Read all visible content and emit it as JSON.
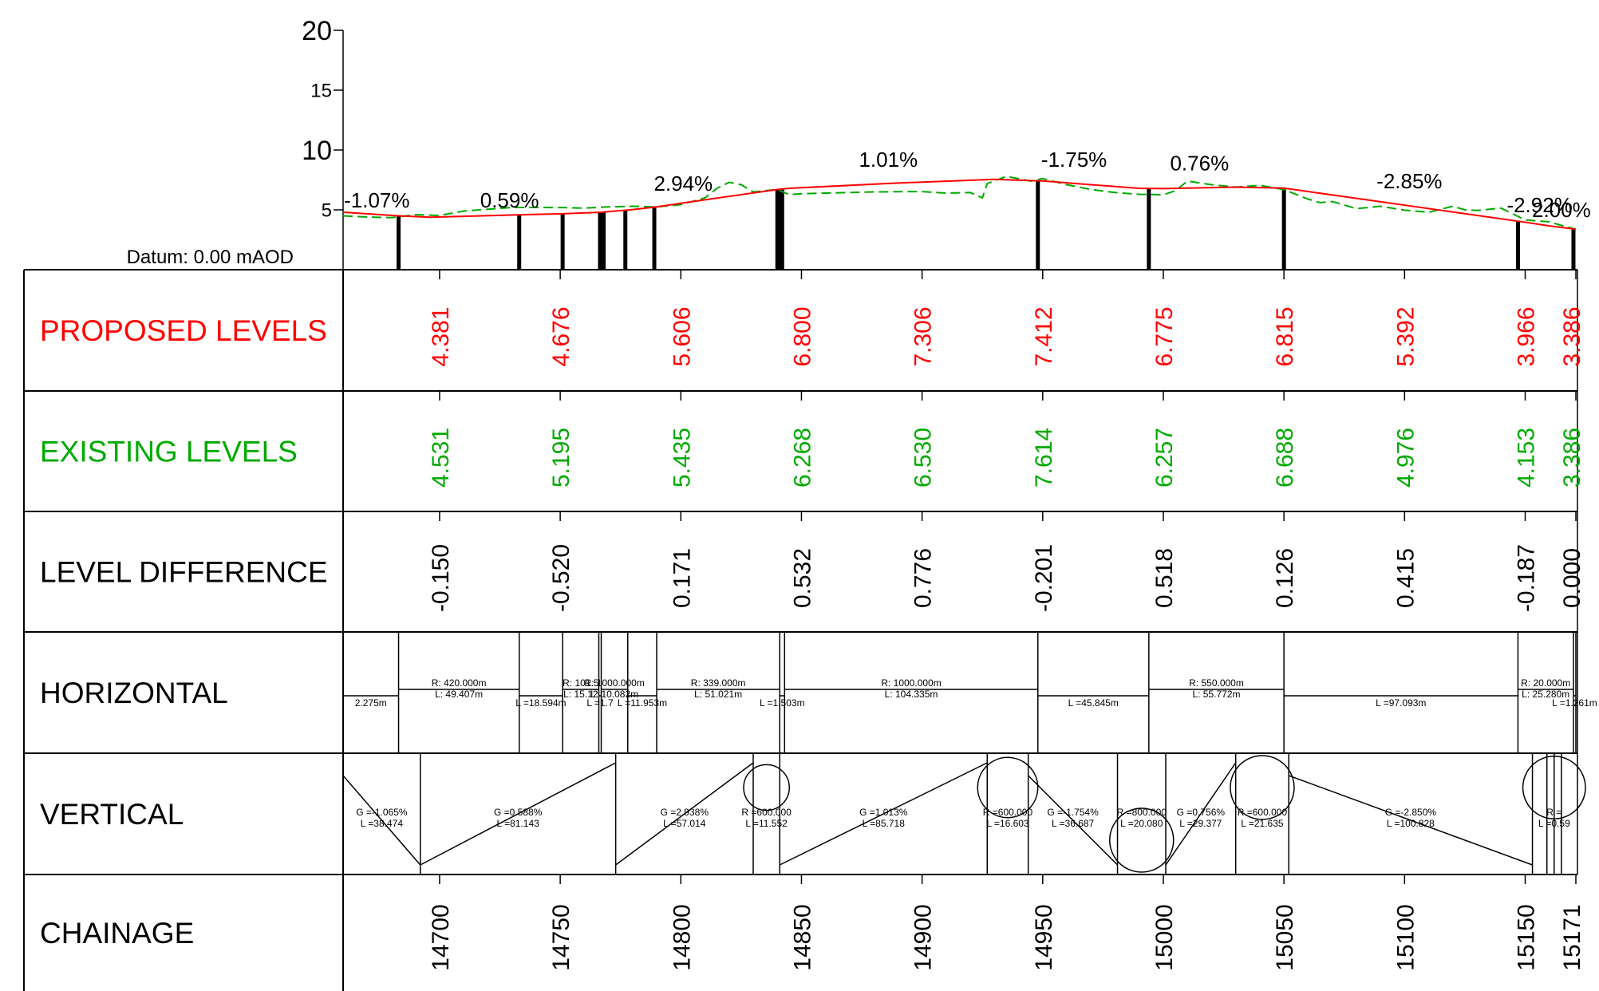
{
  "datum": "Datum: 0.00 mAOD",
  "colors": {
    "proposed": "#ff0000",
    "existing": "#00aa00",
    "ink": "#000000",
    "background": "#ffffff"
  },
  "rows": [
    {
      "key": "proposed",
      "label": "PROPOSED LEVELS",
      "color": "#ff0000"
    },
    {
      "key": "existing",
      "label": "EXISTING LEVELS",
      "color": "#00aa00"
    },
    {
      "key": "difference",
      "label": "LEVEL DIFFERENCE",
      "color": "#000000"
    },
    {
      "key": "horizontal",
      "label": "HORIZONTAL",
      "color": "#000000"
    },
    {
      "key": "vertical",
      "label": "VERTICAL",
      "color": "#000000"
    },
    {
      "key": "chainage",
      "label": "CHAINAGE",
      "color": "#000000"
    }
  ],
  "chart_data": {
    "type": "line",
    "x_label": "Chainage",
    "y_ticks": [
      5,
      10,
      15,
      20
    ],
    "ylim": [
      0,
      20
    ],
    "xlim": [
      14660,
      15171
    ],
    "series": [
      {
        "name": "Proposed",
        "color": "#ff0000",
        "x": [
          14660,
          14683,
          14696,
          14736,
          14751,
          14767,
          14779,
          14790,
          14802,
          14840,
          14845,
          14888,
          14930,
          14950,
          14970,
          14990,
          15000,
          15030,
          15050,
          15100,
          15150,
          15160,
          15171
        ],
        "y": [
          4.8,
          4.5,
          4.38,
          4.6,
          4.676,
          4.8,
          5.0,
          5.25,
          5.606,
          6.7,
          6.8,
          7.23,
          7.55,
          7.412,
          7.1,
          6.8,
          6.775,
          6.9,
          6.815,
          5.392,
          3.966,
          3.66,
          3.386
        ]
      },
      {
        "name": "Existing",
        "color": "#00aa00",
        "x": [
          14660,
          14670,
          14680,
          14690,
          14700,
          14710,
          14720,
          14730,
          14740,
          14750,
          14760,
          14770,
          14780,
          14790,
          14800,
          14810,
          14815,
          14820,
          14825,
          14830,
          14840,
          14845,
          14850,
          14860,
          14870,
          14880,
          14890,
          14900,
          14910,
          14920,
          14925,
          14927,
          14935,
          14945,
          14950,
          14960,
          14970,
          14980,
          14990,
          15000,
          15005,
          15010,
          15020,
          15030,
          15040,
          15050,
          15060,
          15065,
          15070,
          15080,
          15090,
          15100,
          15110,
          15120,
          15125,
          15130,
          15140,
          15150,
          15160,
          15165,
          15171
        ],
        "y": [
          4.5,
          4.4,
          4.35,
          4.6,
          4.531,
          4.9,
          5.05,
          5.2,
          5.2,
          5.195,
          5.15,
          5.25,
          5.3,
          5.25,
          5.435,
          6.0,
          6.8,
          7.3,
          7.1,
          6.5,
          6.7,
          6.268,
          6.35,
          6.4,
          6.45,
          6.5,
          6.52,
          6.53,
          6.4,
          6.45,
          6.0,
          7.2,
          7.8,
          7.4,
          7.614,
          7.1,
          6.7,
          6.45,
          6.3,
          6.257,
          6.6,
          7.4,
          7.1,
          6.9,
          7.05,
          6.688,
          5.9,
          5.6,
          5.7,
          5.1,
          5.3,
          4.976,
          4.8,
          5.3,
          5.0,
          4.95,
          5.15,
          4.153,
          4.0,
          3.7,
          3.386
        ]
      }
    ],
    "grade_labels": [
      {
        "x": 14674,
        "y": 5.2,
        "text": "-1.07%"
      },
      {
        "x": 14729,
        "y": 5.2,
        "text": "0.59%"
      },
      {
        "x": 14801,
        "y": 6.6,
        "text": "2.94%"
      },
      {
        "x": 14886,
        "y": 8.6,
        "text": "1.01%"
      },
      {
        "x": 14963,
        "y": 8.6,
        "text": "-1.75%"
      },
      {
        "x": 15015,
        "y": 8.3,
        "text": "0.76%"
      },
      {
        "x": 15102,
        "y": 6.8,
        "text": "-2.85%"
      },
      {
        "x": 15156,
        "y": 4.8,
        "text": "-2.92%"
      },
      {
        "x": 15165,
        "y": 4.4,
        "text": "2.00%"
      }
    ],
    "setting_out_chainages": [
      14683,
      14733,
      14751,
      14766.5,
      14768,
      14777,
      14789,
      14840,
      14841,
      14842,
      14948,
      14994,
      15050,
      15147,
      15170
    ]
  },
  "stations": [
    {
      "chainage": "14700",
      "proposed": "4.381",
      "existing": "4.531",
      "difference": "-0.150"
    },
    {
      "chainage": "14750",
      "proposed": "4.676",
      "existing": "5.195",
      "difference": "-0.520"
    },
    {
      "chainage": "14800",
      "proposed": "5.606",
      "existing": "5.435",
      "difference": "0.171"
    },
    {
      "chainage": "14850",
      "proposed": "6.800",
      "existing": "6.268",
      "difference": "0.532"
    },
    {
      "chainage": "14900",
      "proposed": "7.306",
      "existing": "6.530",
      "difference": "0.776"
    },
    {
      "chainage": "14950",
      "proposed": "7.412",
      "existing": "7.614",
      "difference": "-0.201"
    },
    {
      "chainage": "15000",
      "proposed": "6.775",
      "existing": "6.257",
      "difference": "0.518"
    },
    {
      "chainage": "15050",
      "proposed": "6.815",
      "existing": "6.688",
      "difference": "0.126"
    },
    {
      "chainage": "15100",
      "proposed": "5.392",
      "existing": "4.976",
      "difference": "0.415"
    },
    {
      "chainage": "15150",
      "proposed": "3.966",
      "existing": "4.153",
      "difference": "-0.187"
    },
    {
      "chainage": "15171",
      "proposed": "3.386",
      "existing": "3.386",
      "difference": "0.000"
    }
  ],
  "horizontal": [
    {
      "from": 14660,
      "to": 14683,
      "curved": false,
      "lines": [
        "2.275m"
      ]
    },
    {
      "from": 14683,
      "to": 14733,
      "curved": true,
      "lines": [
        "R: 420.000m",
        "L: 49.407m"
      ]
    },
    {
      "from": 14733,
      "to": 14751,
      "curved": false,
      "lines": [
        "L =18.594m"
      ]
    },
    {
      "from": 14751,
      "to": 14766,
      "curved": true,
      "lines": [
        "R: 101.5",
        "L: 15.12"
      ]
    },
    {
      "from": 14766,
      "to": 14767,
      "curved": false,
      "lines": [
        "L =1.7"
      ]
    },
    {
      "from": 14767,
      "to": 14778,
      "curved": true,
      "lines": [
        "R: 1000.000m",
        "L: 10.082m"
      ]
    },
    {
      "from": 14778,
      "to": 14790,
      "curved": false,
      "lines": [
        "L =11.953m"
      ]
    },
    {
      "from": 14790,
      "to": 14841,
      "curved": true,
      "lines": [
        "R: 339.000m",
        "L: 51.021m"
      ]
    },
    {
      "from": 14841,
      "to": 14843,
      "curved": false,
      "lines": [
        "L =1.503m"
      ]
    },
    {
      "from": 14843,
      "to": 14948,
      "curved": true,
      "lines": [
        "R: 1000.000m",
        "L: 104.335m"
      ]
    },
    {
      "from": 14948,
      "to": 14994,
      "curved": false,
      "lines": [
        "L =45.845m"
      ]
    },
    {
      "from": 14994,
      "to": 15050,
      "curved": true,
      "lines": [
        "R: 550.000m",
        "L: 55.772m"
      ]
    },
    {
      "from": 15050,
      "to": 15147,
      "curved": false,
      "lines": [
        "L =97.093m"
      ]
    },
    {
      "from": 15147,
      "to": 15170,
      "curved": true,
      "lines": [
        "R: 20.000m",
        "L: 25.280m"
      ]
    },
    {
      "from": 15170,
      "to": 15171,
      "curved": false,
      "lines": [
        "L =1.261m"
      ]
    }
  ],
  "vertical": [
    {
      "from": 14660,
      "to": 14692,
      "kind": "grade",
      "lines": [
        "G =-1.065%",
        "L =38.474"
      ]
    },
    {
      "from": 14692,
      "to": 14773,
      "kind": "grade",
      "lines": [
        "G =0.588%",
        "L =81.143"
      ]
    },
    {
      "from": 14773,
      "to": 14830,
      "kind": "grade",
      "lines": [
        "G =2.938%",
        "L =57.014"
      ]
    },
    {
      "from": 14830,
      "to": 14841,
      "kind": "curve",
      "lines": [
        "R =600.000",
        "L =11.552"
      ]
    },
    {
      "from": 14841,
      "to": 14927,
      "kind": "grade",
      "lines": [
        "G =1.013%",
        "L =85.718"
      ]
    },
    {
      "from": 14927,
      "to": 14944,
      "kind": "curve",
      "lines": [
        "R =600.000",
        "L =16.603"
      ]
    },
    {
      "from": 14944,
      "to": 14981,
      "kind": "grade",
      "lines": [
        "G =-1.754%",
        "L =36.687"
      ]
    },
    {
      "from": 14981,
      "to": 15001,
      "kind": "curve",
      "lines": [
        "R =800.000",
        "L =20.080"
      ]
    },
    {
      "from": 15001,
      "to": 15030,
      "kind": "grade",
      "lines": [
        "G =0.756%",
        "L =29.377"
      ]
    },
    {
      "from": 15030,
      "to": 15052,
      "kind": "curve",
      "lines": [
        "R =600.000",
        "L =21.635"
      ]
    },
    {
      "from": 15052,
      "to": 15153,
      "kind": "grade",
      "lines": [
        "G =-2.850%",
        "L =100.828"
      ]
    },
    {
      "from": 15153,
      "to": 15171,
      "kind": "curve",
      "lines": [
        "R =",
        "L =0.59"
      ]
    }
  ],
  "vertical_extra_dividers": [
    15159,
    15162,
    15165
  ],
  "horizontal_band_extra_dividers": [
    14767
  ]
}
